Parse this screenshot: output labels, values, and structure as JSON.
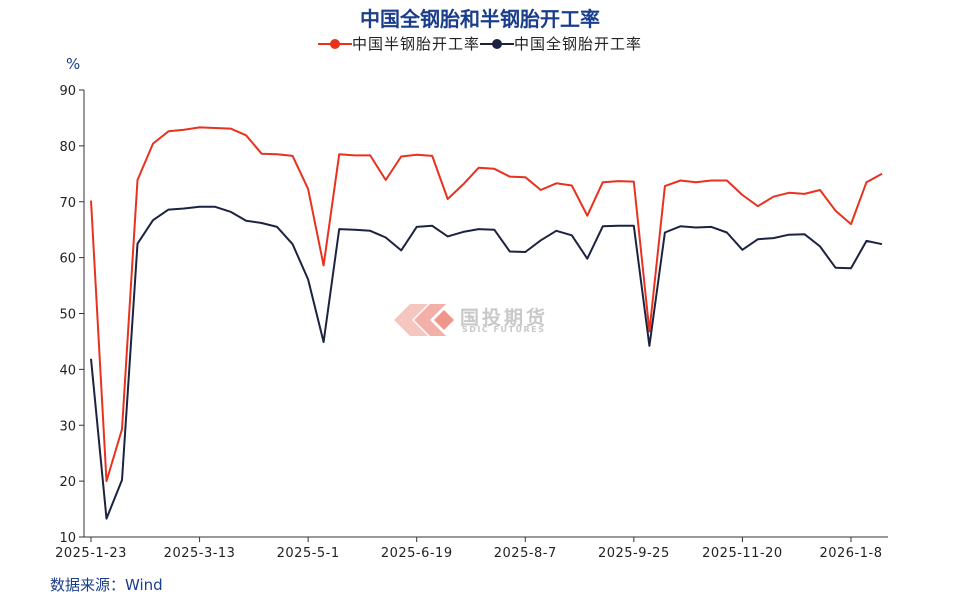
{
  "chart_data": {
    "type": "line",
    "title": "中国全钢胎和半钢胎开工率",
    "ylabel": "%",
    "ylim": [
      10,
      90
    ],
    "yticks": [
      10,
      20,
      30,
      40,
      50,
      60,
      70,
      80,
      90
    ],
    "x_tick_labels": [
      "2025-1-23",
      "2025-3-13",
      "2025-5-1",
      "2025-6-19",
      "2025-8-7",
      "2025-9-25",
      "2025-11-20",
      "2026-1-8"
    ],
    "x_tick_indices": [
      0,
      7,
      14,
      21,
      28,
      35,
      42,
      49
    ],
    "legend_position": "top-center",
    "grid": false,
    "series": [
      {
        "name": "中国半钢胎开工率",
        "color": "#e8321e",
        "values": [
          70.2,
          20.0,
          29.3,
          73.9,
          80.4,
          82.6,
          82.9,
          83.3,
          83.2,
          83.1,
          81.9,
          78.6,
          78.5,
          78.2,
          72.3,
          58.6,
          78.5,
          78.3,
          78.3,
          73.9,
          78.1,
          78.4,
          78.2,
          70.5,
          73.1,
          76.1,
          75.9,
          74.5,
          74.4,
          72.1,
          73.3,
          72.9,
          67.5,
          73.5,
          73.7,
          73.6,
          46.8,
          72.8,
          73.8,
          73.5,
          73.8,
          73.8,
          71.2,
          69.2,
          70.9,
          71.6,
          71.4,
          72.1,
          68.4,
          66.0,
          73.5,
          75.0
        ]
      },
      {
        "name": "中国全钢胎开工率",
        "color": "#1c2340",
        "values": [
          41.9,
          13.3,
          20.2,
          62.5,
          66.7,
          68.6,
          68.8,
          69.1,
          69.1,
          68.2,
          66.6,
          66.2,
          65.5,
          62.4,
          56.1,
          44.9,
          65.1,
          65.0,
          64.8,
          63.6,
          61.3,
          65.5,
          65.7,
          63.8,
          64.6,
          65.1,
          65.0,
          61.1,
          61.0,
          63.1,
          64.8,
          64.0,
          59.8,
          65.6,
          65.7,
          65.7,
          44.2,
          64.5,
          65.6,
          65.4,
          65.5,
          64.5,
          61.4,
          63.3,
          63.5,
          64.1,
          64.2,
          62.0,
          58.2,
          58.1,
          63.0,
          62.4
        ]
      }
    ]
  },
  "watermark": {
    "name": "国投期货",
    "sub": "SDIC FUTURES"
  },
  "source": "数据来源：Wind"
}
